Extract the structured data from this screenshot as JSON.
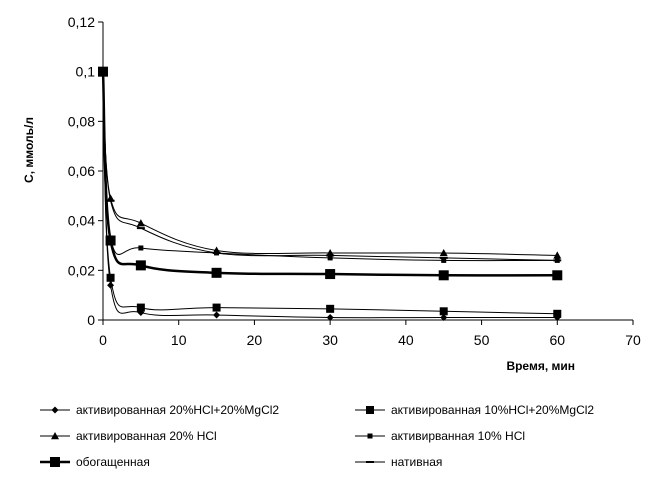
{
  "chart_data": {
    "type": "line",
    "title": "",
    "xlabel": "Время, мин",
    "ylabel": "C, ммоль/л",
    "xlim": [
      0,
      70
    ],
    "ylim": [
      0,
      0.12
    ],
    "x_ticks": [
      0,
      10,
      20,
      30,
      40,
      50,
      60,
      70
    ],
    "x_tick_labels": [
      "0",
      "10",
      "20",
      "30",
      "40",
      "50",
      "60",
      "70"
    ],
    "y_ticks": [
      0,
      0.02,
      0.04,
      0.06,
      0.08,
      0.1,
      0.12
    ],
    "y_tick_labels": [
      "0",
      "0,02",
      "0,04",
      "0,06",
      "0,08",
      "0,1",
      "0,12"
    ],
    "grid": false,
    "legend_position": "bottom",
    "x": [
      0,
      1,
      5,
      15,
      30,
      45,
      60
    ],
    "series": [
      {
        "name": "активированная 20%HCl+20%MgCl2",
        "marker": "diamond",
        "values": [
          0.1,
          0.014,
          0.003,
          0.002,
          0.001,
          0.001,
          0.001
        ]
      },
      {
        "name": "активированная 10%HCl+20%MgCl2",
        "marker": "square",
        "values": [
          0.1,
          0.017,
          0.005,
          0.005,
          0.0045,
          0.0035,
          0.0025
        ]
      },
      {
        "name": "активированная 20% HCl",
        "marker": "triangle",
        "values": [
          0.1,
          0.049,
          0.039,
          0.028,
          0.027,
          0.027,
          0.026
        ]
      },
      {
        "name": "активирванная 10% HCl",
        "marker": "small-square",
        "values": [
          0.1,
          0.033,
          0.029,
          0.027,
          0.025,
          0.024,
          0.024
        ]
      },
      {
        "name": "обогащенная",
        "marker": "big-square",
        "values": [
          0.1,
          0.032,
          0.022,
          0.019,
          0.0185,
          0.018,
          0.018
        ]
      },
      {
        "name": "нативная",
        "marker": "dash",
        "values": [
          0.1,
          0.048,
          0.037,
          0.027,
          0.026,
          0.025,
          0.024
        ]
      }
    ]
  }
}
